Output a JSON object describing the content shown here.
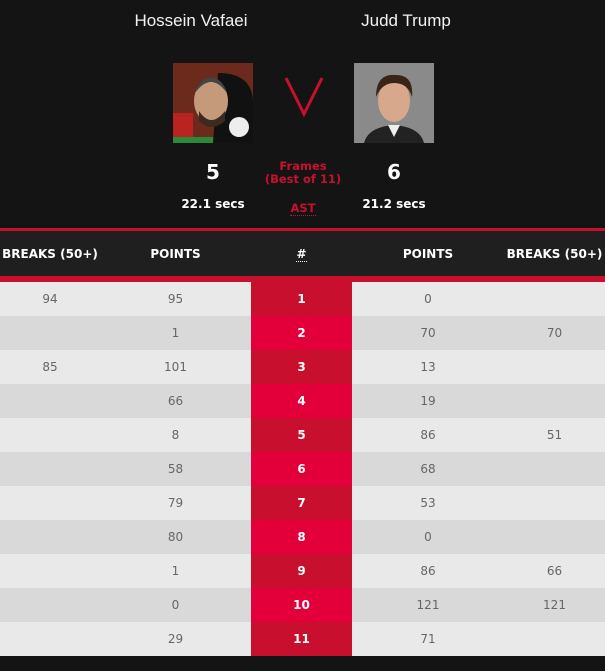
{
  "player1": {
    "name": "Hossein Vafaei",
    "frames": "5",
    "avg_shot_time": "22.1 secs"
  },
  "player2": {
    "name": "Judd Trump",
    "frames": "6",
    "avg_shot_time": "21.2 secs"
  },
  "versus": "V",
  "frames_label": "Frames",
  "best_of_label": "(Best of 11)",
  "ast_label": "AST",
  "table": {
    "headers": [
      "BREAKS (50+)",
      "POINTS",
      "#",
      "POINTS",
      "BREAKS (50+)"
    ],
    "rows": [
      [
        "94",
        "95",
        "1",
        "0",
        ""
      ],
      [
        "",
        "1",
        "2",
        "70",
        "70"
      ],
      [
        "85",
        "101",
        "3",
        "13",
        ""
      ],
      [
        "",
        "66",
        "4",
        "19",
        ""
      ],
      [
        "",
        "8",
        "5",
        "86",
        "51"
      ],
      [
        "",
        "58",
        "6",
        "68",
        ""
      ],
      [
        "",
        "79",
        "7",
        "53",
        ""
      ],
      [
        "",
        "80",
        "8",
        "0",
        ""
      ],
      [
        "",
        "1",
        "9",
        "86",
        "66"
      ],
      [
        "",
        "0",
        "10",
        "121",
        "121"
      ],
      [
        "",
        "29",
        "11",
        "71",
        ""
      ]
    ]
  },
  "colors": {
    "accent": "#c8102e",
    "accent_alt": "#e3003a",
    "background": "#141414"
  }
}
